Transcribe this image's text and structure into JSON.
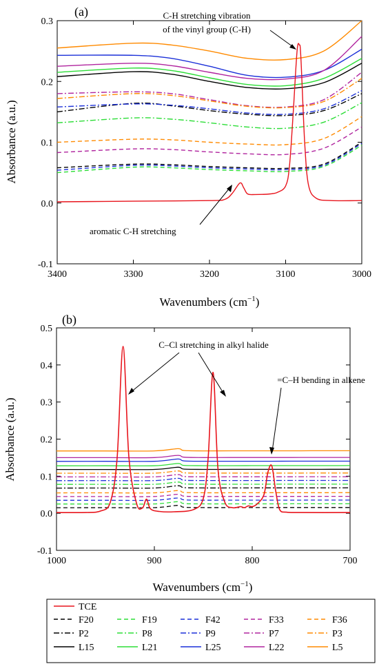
{
  "chart_data": [
    {
      "panel_label": "(a)",
      "type": "line",
      "xlabel_main": "Wavenumbers (cm",
      "xlabel_sup": "−1",
      "xlabel_end": ")",
      "ylabel": "Absorbance (a.u.)",
      "xlim": [
        3400,
        3000
      ],
      "ylim": [
        -0.1,
        0.3
      ],
      "xticks": [
        "3400",
        "3300",
        "3200",
        "3100",
        "3000"
      ],
      "yticks": [
        "-0.1",
        "0.0",
        "0.1",
        "0.2",
        "0.3"
      ],
      "annotations": [
        {
          "lines": [
            "C-H stretching vibration",
            "of the vinyl group (C-H)"
          ]
        },
        {
          "lines": [
            "aromatic C-H stretching"
          ]
        }
      ],
      "series": [
        {
          "name": "F20",
          "x": [
            3400,
            3300,
            3250,
            3200,
            3150,
            3100,
            3050,
            3000
          ],
          "y": [
            0.058,
            0.064,
            0.063,
            0.06,
            0.058,
            0.057,
            0.064,
            0.1
          ]
        },
        {
          "name": "F19",
          "x": [
            3400,
            3300,
            3250,
            3200,
            3150,
            3100,
            3050,
            3000
          ],
          "y": [
            0.05,
            0.059,
            0.058,
            0.055,
            0.053,
            0.052,
            0.06,
            0.095
          ]
        },
        {
          "name": "F42",
          "x": [
            3400,
            3300,
            3250,
            3200,
            3150,
            3100,
            3050,
            3000
          ],
          "y": [
            0.054,
            0.062,
            0.061,
            0.058,
            0.056,
            0.055,
            0.062,
            0.098
          ]
        },
        {
          "name": "F33",
          "x": [
            3400,
            3300,
            3250,
            3200,
            3150,
            3100,
            3050,
            3000
          ],
          "y": [
            0.083,
            0.089,
            0.088,
            0.084,
            0.081,
            0.08,
            0.09,
            0.125
          ]
        },
        {
          "name": "F36",
          "x": [
            3400,
            3300,
            3250,
            3200,
            3150,
            3100,
            3050,
            3000
          ],
          "y": [
            0.1,
            0.105,
            0.104,
            0.1,
            0.097,
            0.096,
            0.106,
            0.142
          ]
        },
        {
          "name": "P2",
          "x": [
            3400,
            3300,
            3250,
            3200,
            3150,
            3100,
            3050,
            3000
          ],
          "y": [
            0.15,
            0.164,
            0.16,
            0.152,
            0.146,
            0.144,
            0.152,
            0.18
          ]
        },
        {
          "name": "P8",
          "x": [
            3400,
            3300,
            3250,
            3200,
            3150,
            3100,
            3050,
            3000
          ],
          "y": [
            0.132,
            0.14,
            0.138,
            0.132,
            0.125,
            0.123,
            0.133,
            0.165
          ]
        },
        {
          "name": "P9",
          "x": [
            3400,
            3300,
            3250,
            3200,
            3150,
            3100,
            3050,
            3000
          ],
          "y": [
            0.158,
            0.163,
            0.161,
            0.155,
            0.148,
            0.146,
            0.155,
            0.185
          ]
        },
        {
          "name": "P7",
          "x": [
            3400,
            3300,
            3250,
            3200,
            3150,
            3100,
            3050,
            3000
          ],
          "y": [
            0.18,
            0.183,
            0.18,
            0.17,
            0.16,
            0.158,
            0.17,
            0.215
          ]
        },
        {
          "name": "P3",
          "x": [
            3400,
            3300,
            3250,
            3200,
            3150,
            3100,
            3050,
            3000
          ],
          "y": [
            0.172,
            0.18,
            0.177,
            0.168,
            0.159,
            0.157,
            0.167,
            0.205
          ]
        },
        {
          "name": "L15",
          "x": [
            3400,
            3300,
            3250,
            3200,
            3150,
            3100,
            3050,
            3000
          ],
          "y": [
            0.208,
            0.216,
            0.212,
            0.2,
            0.19,
            0.188,
            0.198,
            0.23
          ]
        },
        {
          "name": "L21",
          "x": [
            3400,
            3300,
            3250,
            3200,
            3150,
            3100,
            3050,
            3000
          ],
          "y": [
            0.215,
            0.222,
            0.218,
            0.206,
            0.195,
            0.193,
            0.205,
            0.238
          ]
        },
        {
          "name": "L25",
          "x": [
            3400,
            3300,
            3250,
            3200,
            3150,
            3100,
            3050,
            3000
          ],
          "y": [
            0.243,
            0.243,
            0.238,
            0.225,
            0.21,
            0.207,
            0.218,
            0.253
          ]
        },
        {
          "name": "L22",
          "x": [
            3400,
            3300,
            3250,
            3200,
            3150,
            3100,
            3050,
            3000
          ],
          "y": [
            0.225,
            0.23,
            0.226,
            0.215,
            0.205,
            0.204,
            0.218,
            0.274
          ]
        },
        {
          "name": "L5",
          "x": [
            3400,
            3300,
            3250,
            3200,
            3150,
            3100,
            3050,
            3000
          ],
          "y": [
            0.255,
            0.263,
            0.26,
            0.25,
            0.238,
            0.236,
            0.25,
            0.3
          ]
        },
        {
          "name": "TCE",
          "x": [
            3400,
            3300,
            3200,
            3180,
            3170,
            3160,
            3155,
            3150,
            3140,
            3120,
            3110,
            3100,
            3095,
            3090,
            3085,
            3082,
            3080,
            3075,
            3070,
            3060,
            3040,
            3000
          ],
          "y": [
            0.002,
            0.003,
            0.004,
            0.006,
            0.016,
            0.033,
            0.025,
            0.015,
            0.014,
            0.015,
            0.018,
            0.028,
            0.06,
            0.15,
            0.25,
            0.26,
            0.24,
            0.1,
            0.03,
            0.008,
            0.004,
            0.004
          ]
        }
      ]
    },
    {
      "panel_label": "(b)",
      "type": "line",
      "xlabel_main": "Wavenumbers (cm",
      "xlabel_sup": "−1",
      "xlabel_end": ")",
      "ylabel": "Absorbance (a.u.)",
      "xlim": [
        1000,
        700
      ],
      "ylim": [
        -0.1,
        0.5
      ],
      "xticks": [
        "1000",
        "900",
        "800",
        "700"
      ],
      "yticks": [
        "-0.1",
        "0.0",
        "0.1",
        "0.2",
        "0.3",
        "0.4",
        "0.5"
      ],
      "annotations": [
        {
          "lines": [
            "C–Cl stretching in alkyl halide"
          ]
        },
        {
          "lines": [
            "=C–H bending in alkene"
          ]
        }
      ],
      "baseline_levels": [
        {
          "name": "F20",
          "y": 0.015
        },
        {
          "name": "F19",
          "y": 0.025
        },
        {
          "name": "F42",
          "y": 0.035
        },
        {
          "name": "F33",
          "y": 0.045
        },
        {
          "name": "F36",
          "y": 0.055
        },
        {
          "name": "P2",
          "y": 0.068
        },
        {
          "name": "P8",
          "y": 0.078
        },
        {
          "name": "P9",
          "y": 0.088
        },
        {
          "name": "P7",
          "y": 0.098
        },
        {
          "name": "P3",
          "y": 0.108
        },
        {
          "name": "L15",
          "y": 0.118
        },
        {
          "name": "L21",
          "y": 0.128
        },
        {
          "name": "L25",
          "y": 0.14
        },
        {
          "name": "L22",
          "y": 0.15
        },
        {
          "name": "L5",
          "y": 0.168
        }
      ],
      "tce": {
        "name": "TCE",
        "x": [
          1000,
          970,
          955,
          945,
          938,
          932,
          926,
          918,
          912,
          908,
          904,
          895,
          880,
          860,
          850,
          845,
          840,
          835,
          828,
          820,
          812,
          808,
          804,
          800,
          795,
          788,
          784,
          780,
          776,
          772,
          765,
          750,
          700
        ],
        "y": [
          0.002,
          0.002,
          0.006,
          0.03,
          0.15,
          0.45,
          0.15,
          0.025,
          0.015,
          0.038,
          0.012,
          0.005,
          0.004,
          0.01,
          0.04,
          0.15,
          0.38,
          0.12,
          0.03,
          0.015,
          0.018,
          0.015,
          0.02,
          0.018,
          0.025,
          0.05,
          0.11,
          0.128,
          0.06,
          0.01,
          0.003,
          0.002,
          0.002
        ]
      }
    }
  ],
  "legend": {
    "rows": [
      [
        {
          "name": "TCE",
          "color": "#e8141c",
          "dash": "solid"
        }
      ],
      [
        {
          "name": "F20",
          "color": "#000000",
          "dash": "dash"
        },
        {
          "name": "F19",
          "color": "#2bdd36",
          "dash": "dash"
        },
        {
          "name": "F42",
          "color": "#1a2fd8",
          "dash": "dash"
        },
        {
          "name": "F33",
          "color": "#b0239e",
          "dash": "dash"
        },
        {
          "name": "F36",
          "color": "#ff8a00",
          "dash": "dash"
        }
      ],
      [
        {
          "name": "P2",
          "color": "#000000",
          "dash": "dashdot"
        },
        {
          "name": "P8",
          "color": "#2bdd36",
          "dash": "dashdot"
        },
        {
          "name": "P9",
          "color": "#1a2fd8",
          "dash": "dashdot"
        },
        {
          "name": "P7",
          "color": "#b0239e",
          "dash": "dashdot"
        },
        {
          "name": "P3",
          "color": "#ff8a00",
          "dash": "dashdot"
        }
      ],
      [
        {
          "name": "L15",
          "color": "#000000",
          "dash": "solid"
        },
        {
          "name": "L21",
          "color": "#2bdd36",
          "dash": "solid"
        },
        {
          "name": "L25",
          "color": "#1a2fd8",
          "dash": "solid"
        },
        {
          "name": "L22",
          "color": "#b0239e",
          "dash": "solid"
        },
        {
          "name": "L5",
          "color": "#ff8a00",
          "dash": "solid"
        }
      ]
    ]
  }
}
